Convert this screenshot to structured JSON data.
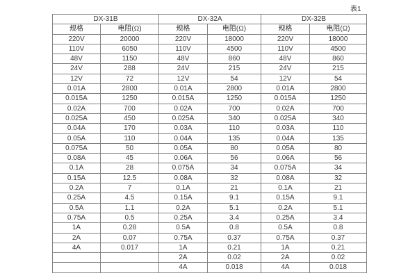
{
  "caption": "表1",
  "colors": {
    "border": "#808080",
    "text": "#3a3a3a",
    "background": "#ffffff"
  },
  "chart_data": {
    "type": "table",
    "title": "表1",
    "column_groups": [
      {
        "label": "DX-31B",
        "col_headers": [
          "规格",
          "电阻(Ω)"
        ]
      },
      {
        "label": "DX-32A",
        "col_headers": [
          "规格",
          "电阻(Ω)"
        ]
      },
      {
        "label": "DX-32B",
        "col_headers": [
          "规格",
          "电阻(Ω)"
        ]
      }
    ],
    "rows": [
      [
        "220V",
        "20000",
        "220V",
        "18000",
        "220V",
        "18000"
      ],
      [
        "110V",
        "6050",
        "110V",
        "4500",
        "110V",
        "4500"
      ],
      [
        "48V",
        "1150",
        "48V",
        "860",
        "48V",
        "860"
      ],
      [
        "24V",
        "288",
        "24V",
        "215",
        "24V",
        "215"
      ],
      [
        "12V",
        "72",
        "12V",
        "54",
        "12V",
        "54"
      ],
      [
        "0.01A",
        "2800",
        "0.01A",
        "2800",
        "0.01A",
        "2800"
      ],
      [
        "0.015A",
        "1250",
        "0.015A",
        "1250",
        "0.015A",
        "1250"
      ],
      [
        "0.02A",
        "700",
        "0.02A",
        "700",
        "0.02A",
        "700"
      ],
      [
        "0.025A",
        "450",
        "0.025A",
        "340",
        "0.025A",
        "340"
      ],
      [
        "0.04A",
        "170",
        "0.03A",
        "110",
        "0.03A",
        "110"
      ],
      [
        "0.05A",
        "110",
        "0.04A",
        "135",
        "0.04A",
        "135"
      ],
      [
        "0.075A",
        "50",
        "0.05A",
        "80",
        "0.05A",
        "80"
      ],
      [
        "0.08A",
        "45",
        "0.06A",
        "56",
        "0.06A",
        "56"
      ],
      [
        "0.1A",
        "28",
        "0.075A",
        "34",
        "0.075A",
        "34"
      ],
      [
        "0.15A",
        "12.5",
        "0.08A",
        "32",
        "0.08A",
        "32"
      ],
      [
        "0.2A",
        "7",
        "0.1A",
        "21",
        "0.1A",
        "21"
      ],
      [
        "0.25A",
        "4.5",
        "0.15A",
        "9.1",
        "0.15A",
        "9.1"
      ],
      [
        "0.5A",
        "1.1",
        "0.2A",
        "5.1",
        "0.2A",
        "5.1"
      ],
      [
        "0.75A",
        "0.5",
        "0.25A",
        "3.4",
        "0.25A",
        "3.4"
      ],
      [
        "1A",
        "0.28",
        "0.5A",
        "0.8",
        "0.5A",
        "0.8"
      ],
      [
        "2A",
        "0.07",
        "0.75A",
        "0.37",
        "0.75A",
        "0.37"
      ],
      [
        "4A",
        "0.017",
        "1A",
        "0.21",
        "1A",
        "0.21"
      ],
      [
        "",
        "",
        "2A",
        "0.02",
        "2A",
        "0.02"
      ],
      [
        "",
        "",
        "4A",
        "0.018",
        "4A",
        "0.018"
      ]
    ]
  }
}
